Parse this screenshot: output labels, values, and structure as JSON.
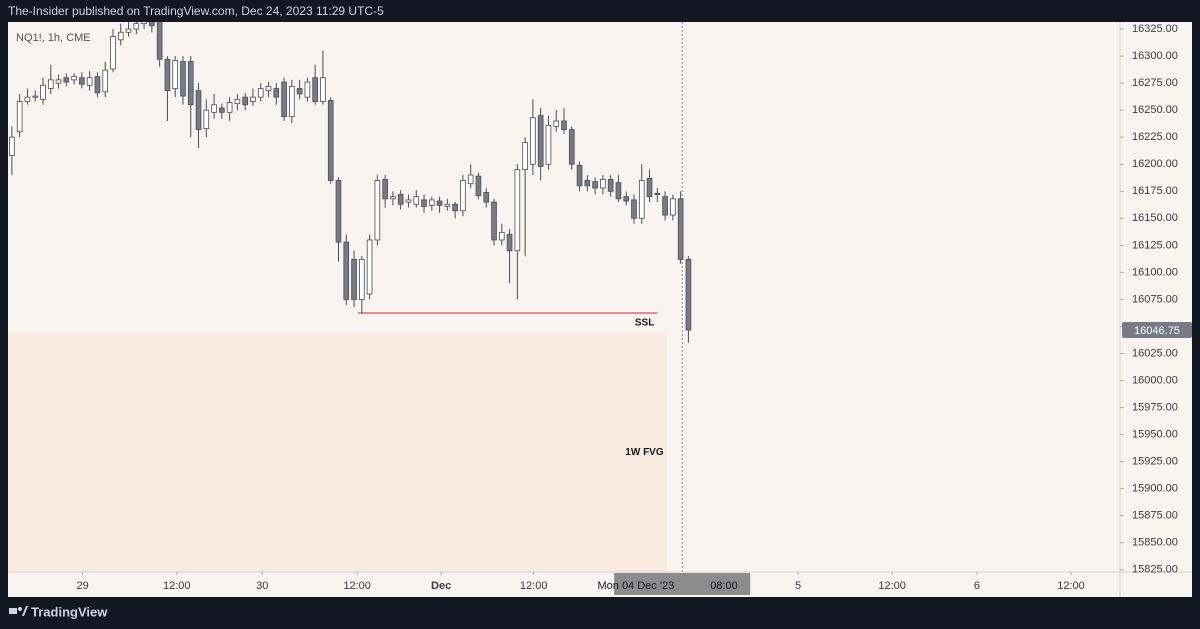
{
  "header": "The-Insider published on TradingView.com, Dec 24, 2023 11:29 UTC-5",
  "footer": "TradingView",
  "chart_data": {
    "type": "candlestick",
    "symbol": "NQ1!, 1h, CME",
    "up_color": "#ffffff",
    "down_color": "#787b86",
    "border_color": "#4a4d57",
    "open": [
      16208,
      16230,
      16258,
      16262,
      16260,
      16270,
      16275,
      16280,
      16278,
      16280,
      16273,
      16281,
      16267,
      16288,
      16315,
      16322,
      16325,
      16330,
      16332,
      16335,
      16297,
      16270,
      16295,
      16295,
      16268,
      16233,
      16248,
      16252,
      16248,
      16256,
      16262,
      16258,
      16262,
      16268,
      16270,
      16276,
      16244,
      16270,
      16262,
      16280,
      16258,
      16259,
      16185,
      16128,
      16112,
      16075,
      16080,
      16130,
      16186,
      16168,
      16172,
      16165,
      16163,
      16167,
      16162,
      16166,
      16161,
      16163,
      16157,
      16182,
      16189,
      16174,
      16165,
      16130,
      16135,
      16120,
      16195,
      16200,
      16245,
      16200,
      16235,
      16240,
      16232,
      16199,
      16185,
      16184,
      16178,
      16186,
      16183,
      16170,
      16167,
      16150,
      16187,
      16173,
      16170,
      16153,
      16168,
      16112
    ],
    "high": [
      16235,
      16265,
      16270,
      16268,
      16280,
      16292,
      16283,
      16284,
      16284,
      16285,
      16286,
      16285,
      16295,
      16325,
      16330,
      16332,
      16340,
      16340,
      16340,
      16340,
      16300,
      16300,
      16300,
      16300,
      16275,
      16260,
      16265,
      16256,
      16262,
      16265,
      16266,
      16270,
      16275,
      16276,
      16275,
      16280,
      16278,
      16278,
      16280,
      16292,
      16305,
      16262,
      16188,
      16135,
      16120,
      16115,
      16135,
      16190,
      16190,
      16175,
      16176,
      16172,
      16176,
      16172,
      16170,
      16170,
      16168,
      16165,
      16190,
      16200,
      16192,
      16178,
      16168,
      16145,
      16140,
      16200,
      16225,
      16260,
      16252,
      16245,
      16250,
      16252,
      16235,
      16202,
      16190,
      16188,
      16190,
      16190,
      16190,
      16175,
      16172,
      16200,
      16195,
      16178,
      16175,
      16172,
      16175,
      16115
    ],
    "low": [
      16190,
      16225,
      16255,
      16258,
      16255,
      16265,
      16270,
      16272,
      16274,
      16270,
      16268,
      16262,
      16262,
      16285,
      16310,
      16318,
      16320,
      16325,
      16322,
      16290,
      16240,
      16262,
      16255,
      16225,
      16215,
      16225,
      16242,
      16242,
      16240,
      16250,
      16250,
      16254,
      16258,
      16262,
      16255,
      16240,
      16238,
      16260,
      16258,
      16255,
      16255,
      16182,
      16110,
      16070,
      16068,
      16062,
      16075,
      16125,
      16160,
      16162,
      16158,
      16160,
      16160,
      16155,
      16157,
      16155,
      16157,
      16150,
      16152,
      16178,
      16168,
      16160,
      16125,
      16125,
      16090,
      16075,
      16115,
      16190,
      16185,
      16195,
      16230,
      16228,
      16195,
      16175,
      16175,
      16172,
      16172,
      16170,
      16165,
      16162,
      16145,
      16145,
      16165,
      16165,
      16148,
      16148,
      16108,
      16035
    ],
    "close": [
      16225,
      16258,
      16262,
      16263,
      16273,
      16278,
      16278,
      16276,
      16281,
      16274,
      16280,
      16266,
      16287,
      16318,
      16322,
      16325,
      16330,
      16332,
      16328,
      16297,
      16268,
      16296,
      16263,
      16255,
      16232,
      16250,
      16255,
      16248,
      16257,
      16260,
      16255,
      16262,
      16270,
      16272,
      16262,
      16244,
      16272,
      16265,
      16276,
      16258,
      16280,
      16185,
      16128,
      16075,
      16075,
      16112,
      16130,
      16185,
      16168,
      16170,
      16163,
      16167,
      16170,
      16161,
      16167,
      16162,
      16163,
      16157,
      16185,
      16190,
      16171,
      16165,
      16130,
      16137,
      16120,
      16195,
      16220,
      16243,
      16198,
      16236,
      16240,
      16232,
      16200,
      16180,
      16180,
      16178,
      16186,
      16175,
      16168,
      16166,
      16150,
      16185,
      16170,
      16172,
      16153,
      16168,
      16112,
      16046.75
    ],
    "xlim": [
      -0.5,
      142.5
    ],
    "ylim": [
      15823,
      16331.5
    ],
    "xticks": [
      {
        "value": 9.1,
        "label": "29"
      },
      {
        "value": 21.2,
        "label": "12:00"
      },
      {
        "value": 32.2,
        "label": "30"
      },
      {
        "value": 44.4,
        "label": "12:00"
      },
      {
        "value": 55.2,
        "label": "Dec"
      },
      {
        "value": 67.1,
        "label": "12:00"
      },
      {
        "value": 101.1,
        "label": "5"
      },
      {
        "value": 113.2,
        "label": "12:00"
      },
      {
        "value": 124.1,
        "label": "6"
      },
      {
        "value": 136.2,
        "label": "12:00"
      }
    ],
    "yticks": [
      {
        "value": 15825,
        "label": "15825.00"
      },
      {
        "value": 15850,
        "label": "15850.00"
      },
      {
        "value": 15875,
        "label": "15875.00"
      },
      {
        "value": 15900,
        "label": "15900.00"
      },
      {
        "value": 15925,
        "label": "15925.00"
      },
      {
        "value": 15950,
        "label": "15950.00"
      },
      {
        "value": 15975,
        "label": "15975.00"
      },
      {
        "value": 16000,
        "label": "16000.00"
      },
      {
        "value": 16025,
        "label": "16025.00"
      },
      {
        "value": 16050,
        "label": "16050.00"
      },
      {
        "value": 16075,
        "label": "16075.00"
      },
      {
        "value": 16100,
        "label": "16100.00"
      },
      {
        "value": 16125,
        "label": "16125.00"
      },
      {
        "value": 16150,
        "label": "16150.00"
      },
      {
        "value": 16175,
        "label": "16175.00"
      },
      {
        "value": 16200,
        "label": "16200.00"
      },
      {
        "value": 16225,
        "label": "16225.00"
      },
      {
        "value": 16250,
        "label": "16250.00"
      },
      {
        "value": 16275,
        "label": "16275.00"
      },
      {
        "value": 16300,
        "label": "16300.00"
      },
      {
        "value": 16325,
        "label": "16325.00"
      }
    ],
    "last_price": {
      "value": 16046.75,
      "label": "16046.75"
    },
    "crosshair": {
      "x": 86.2,
      "date": "Mon 04 Dec '23",
      "time": "08:00"
    },
    "ssl": {
      "price": 16062.5,
      "x_from": 44.5,
      "x_to": 83,
      "label": "SSL",
      "color": "#f0606a"
    },
    "fvg": {
      "top": 16044,
      "bottom": 15823,
      "x_from": -0.5,
      "x_to": 84.2,
      "label": "1W FVG",
      "color": "#f8eadf"
    }
  }
}
